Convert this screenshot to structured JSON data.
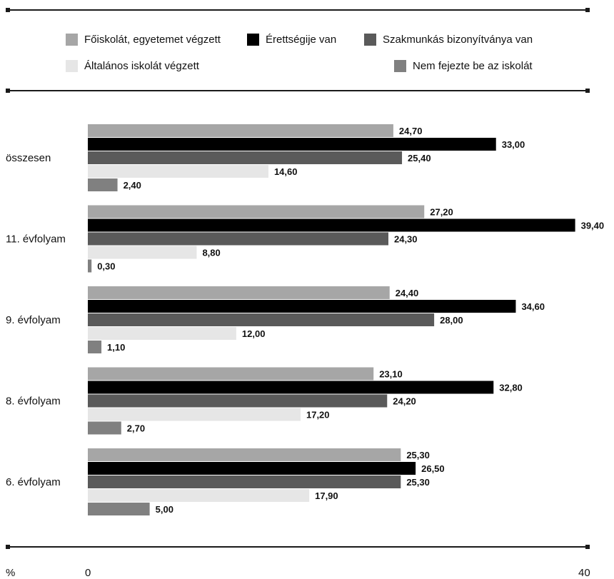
{
  "legend": [
    {
      "label": "Főiskolát, egyetemet végzett",
      "color": "#a6a6a6"
    },
    {
      "label": "Érettségije van",
      "color": "#000000"
    },
    {
      "label": "Szakmunkás bizonyítványa van",
      "color": "#5a5a5a"
    },
    {
      "label": "Általános iskolát végzett",
      "color": "#e6e6e6"
    },
    {
      "label": "Nem fejezte be az iskolát",
      "color": "#808080"
    }
  ],
  "axis": {
    "unit": "%",
    "min_label": "0",
    "max_label": "40"
  },
  "chart_data": {
    "type": "bar",
    "orientation": "horizontal",
    "categories": [
      "összesen",
      "11. évfolyam",
      "9. évfolyam",
      "8. évfolyam",
      "6. évfolyam"
    ],
    "series": [
      {
        "name": "Főiskolát, egyetemet végzett",
        "values": [
          24.7,
          27.2,
          24.4,
          23.1,
          25.3
        ],
        "labels": [
          "24,70",
          "27,20",
          "24,40",
          "23,10",
          "25,30"
        ]
      },
      {
        "name": "Érettségije van",
        "values": [
          33.0,
          39.4,
          34.6,
          32.8,
          26.5
        ],
        "labels": [
          "33,00",
          "39,40",
          "34,60",
          "32,80",
          "26,50"
        ]
      },
      {
        "name": "Szakmunkás bizonyítványa van",
        "values": [
          25.4,
          24.3,
          28.0,
          24.2,
          25.3
        ],
        "labels": [
          "25,40",
          "24,30",
          "28,00",
          "24,20",
          "25,30"
        ]
      },
      {
        "name": "Általános iskolát végzett",
        "values": [
          14.6,
          8.8,
          12.0,
          17.2,
          17.9
        ],
        "labels": [
          "14,60",
          "8,80",
          "12,00",
          "17,20",
          "17,90"
        ]
      },
      {
        "name": "Nem fejezte be az iskolát",
        "values": [
          2.4,
          0.3,
          1.1,
          2.7,
          5.0
        ],
        "labels": [
          "2,40",
          "0,30",
          "1,10",
          "2,70",
          "5,00"
        ]
      }
    ],
    "xlim": [
      0,
      40
    ],
    "grid": false,
    "legend_position": "top"
  }
}
